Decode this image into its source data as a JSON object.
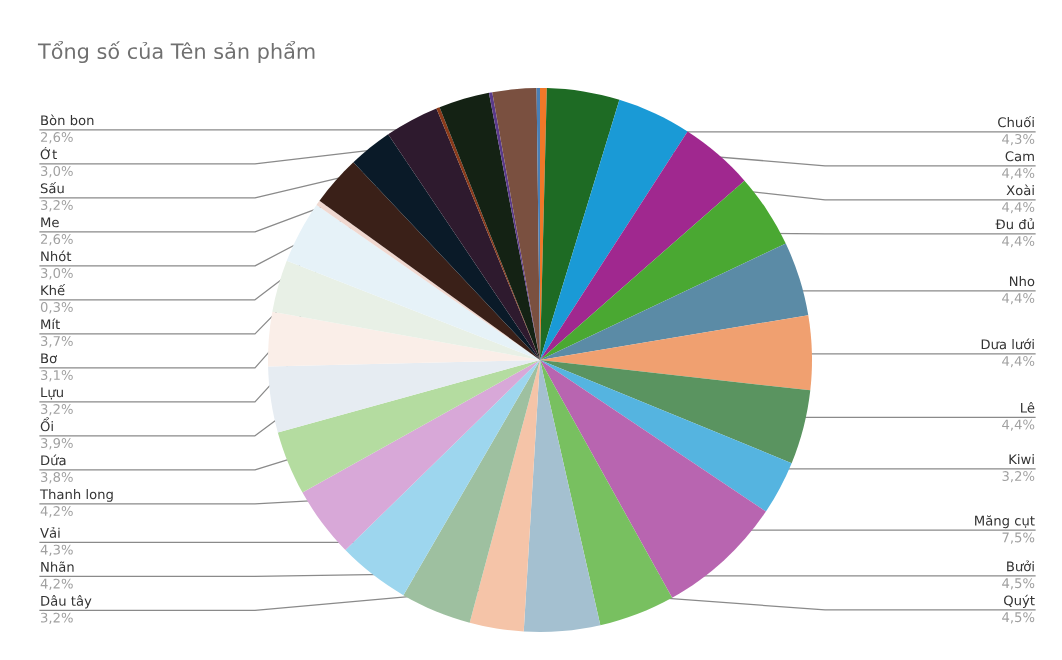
{
  "chart_data": {
    "type": "pie",
    "title": "Tổng số của Tên sản phẩm",
    "categories": [
      null,
      "Chuối",
      "Cam",
      "Xoài",
      "Đu đủ",
      "Nho",
      "Dưa lưới",
      "Lê",
      "Kiwi",
      "Măng cụt",
      "Bưởi",
      "Quýt",
      "Dâu tây",
      "Nhãn",
      "Vải",
      "Thanh long",
      "Dứa",
      "Ổi",
      "Lựu",
      "Bơ",
      "Mít",
      "Khế",
      "Nhót",
      "Me",
      "Sấu",
      null,
      "Ớt",
      null,
      "Bòn bon",
      null
    ],
    "values": [
      0.4,
      4.3,
      4.4,
      4.4,
      4.4,
      4.4,
      4.4,
      4.4,
      3.2,
      7.5,
      4.5,
      4.5,
      3.2,
      4.2,
      4.3,
      4.2,
      3.8,
      3.9,
      3.2,
      3.1,
      3.7,
      0.3,
      3.0,
      2.6,
      3.2,
      0.2,
      3.0,
      0.2,
      2.6,
      0.2
    ],
    "value_labels": [
      null,
      "4,3%",
      "4,4%",
      "4,4%",
      "4,4%",
      "4,4%",
      "4,4%",
      "4,4%",
      "3,2%",
      "7,5%",
      "4,5%",
      "4,5%",
      "3,2%",
      "4,2%",
      "4,3%",
      "4,2%",
      "3,8%",
      "3,9%",
      "3,2%",
      "3,1%",
      "3,7%",
      "0,3%",
      "3,0%",
      "2,6%",
      "3,2%",
      null,
      "3,0%",
      null,
      "2,6%",
      null
    ],
    "colors": [
      "#f07828",
      "#1e6b24",
      "#1a9ad6",
      "#a0288f",
      "#4aa832",
      "#5b8ba6",
      "#f0a070",
      "#5a9460",
      "#55b4e0",
      "#b865b0",
      "#78c060",
      "#a4c0d0",
      "#f5c4a8",
      "#9ec0a0",
      "#9dd6ee",
      "#d8a8d8",
      "#b4dca0",
      "#e6ecf2",
      "#faeee8",
      "#e8f0e6",
      "#e6f2f8",
      "#f0d8d0",
      "#3a2018",
      "#0a1a28",
      "#2e1a2e",
      "#8a3a1a",
      "#142214",
      "#5a3a8a",
      "#7a5040",
      "#4a7fb5"
    ],
    "legend": false
  }
}
